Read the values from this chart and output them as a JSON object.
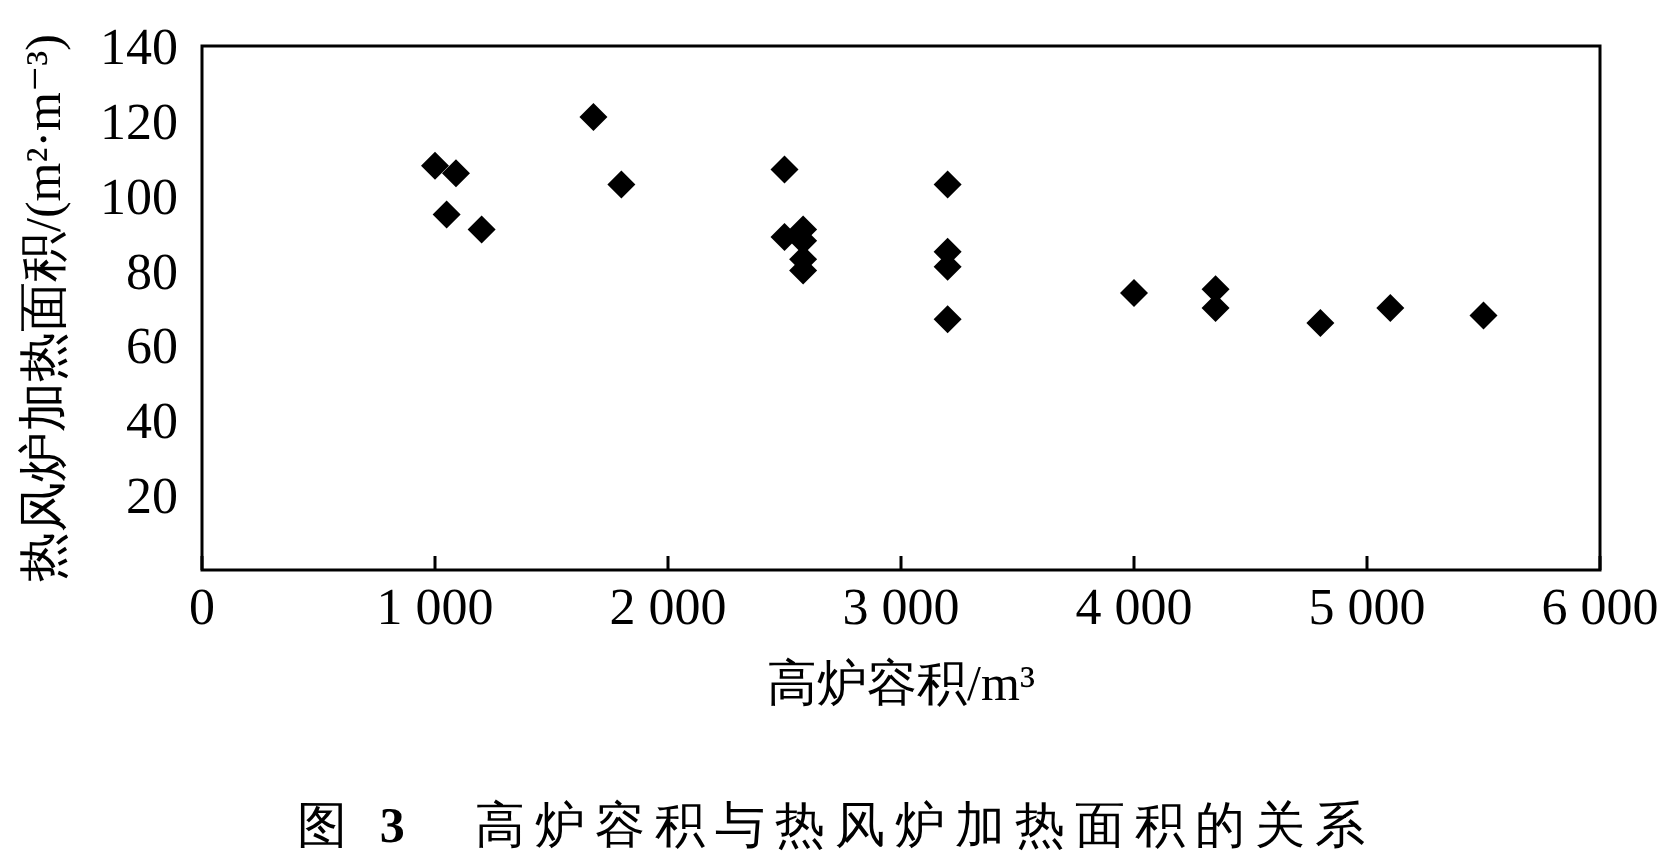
{
  "chart_data": {
    "type": "scatter",
    "title": "图 **3**　高炉容积与热风炉加热面积的关系",
    "xlabel": "高炉容积/m³",
    "ylabel": "热风炉加热面积/(m²·m⁻³)",
    "x": [
      1000,
      1050,
      1090,
      1200,
      1680,
      1800,
      2500,
      2500,
      2580,
      2580,
      2580,
      2580,
      3200,
      3200,
      3200,
      3200,
      4000,
      4350,
      4350,
      4800,
      5100,
      5500
    ],
    "series": [
      {
        "color": "#000000",
        "values": [
          108,
          95,
          106,
          91,
          121,
          103,
          107,
          89,
          91,
          88,
          83,
          80,
          103,
          85,
          81,
          67,
          74,
          75,
          70,
          66,
          70,
          68
        ]
      }
    ],
    "marker": "diamond",
    "xlim": [
      0,
      6000
    ],
    "ylim": [
      0,
      140
    ],
    "xticks": [
      0,
      {
        "value": 1000,
        "label": "1 000"
      },
      {
        "value": 2000,
        "label": "2 000"
      },
      {
        "value": 3000,
        "label": "3 000"
      },
      {
        "value": 4000,
        "label": "4 000"
      },
      {
        "value": 5000,
        "label": "5 000"
      },
      {
        "value": 6000,
        "label": "6 000"
      }
    ],
    "yticks": [
      20,
      40,
      60,
      80,
      100,
      120,
      140
    ]
  }
}
